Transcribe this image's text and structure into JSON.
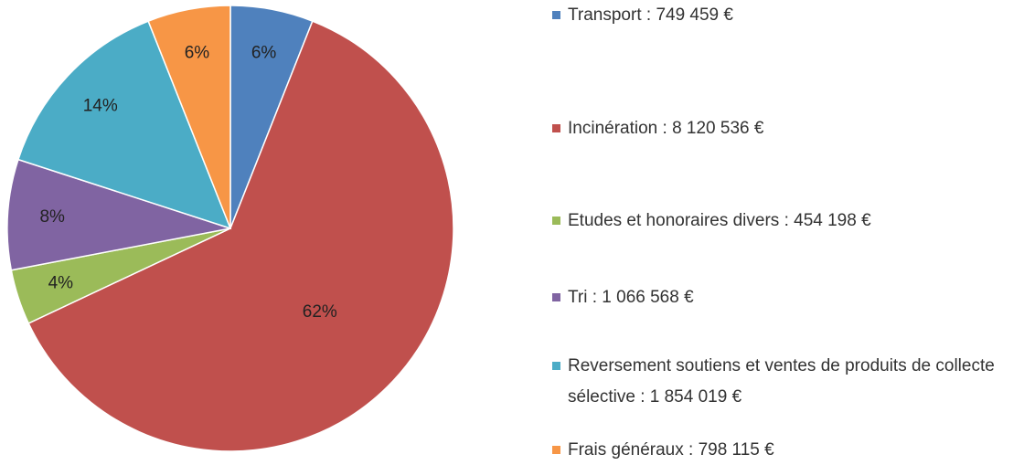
{
  "chart_data": {
    "type": "pie",
    "categories": [
      "Transport : 749 459 €",
      "Incinération : 8 120 536 €",
      "Etudes et honoraires divers : 454 198 €",
      "Tri : 1 066 568 €",
      "Reversement soutiens et ventes de produits de collecte sélective : 1 854 019 €",
      "Frais généraux : 798 115 €"
    ],
    "values": [
      6,
      62,
      4,
      8,
      14,
      6
    ],
    "value_labels": [
      "6%",
      "62%",
      "4%",
      "8%",
      "14%",
      "6%"
    ],
    "colors": [
      "#4f81bd",
      "#c0504d",
      "#9bbb59",
      "#8064a2",
      "#4bacc6",
      "#f79646"
    ]
  }
}
